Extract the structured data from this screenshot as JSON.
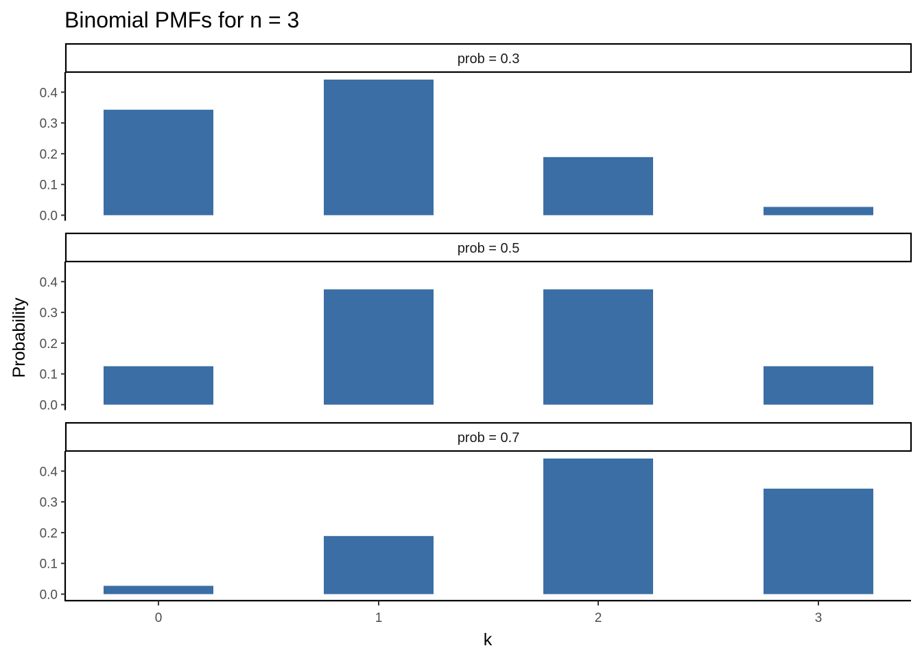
{
  "chart_data": {
    "type": "bar",
    "title": "Binomial PMFs for n = 3",
    "xlabel": "k",
    "ylabel": "Probability",
    "categories": [
      "0",
      "1",
      "2",
      "3"
    ],
    "ylim": [
      0,
      0.45
    ],
    "yticks": [
      "0.0",
      "0.1",
      "0.2",
      "0.3",
      "0.4"
    ],
    "bar_color": "#3A6EA5",
    "grid": false,
    "facets": [
      {
        "label": "prob = 0.3",
        "values": [
          0.343,
          0.441,
          0.189,
          0.027
        ]
      },
      {
        "label": "prob = 0.5",
        "values": [
          0.125,
          0.375,
          0.375,
          0.125
        ]
      },
      {
        "label": "prob = 0.7",
        "values": [
          0.027,
          0.189,
          0.441,
          0.343
        ]
      }
    ]
  }
}
